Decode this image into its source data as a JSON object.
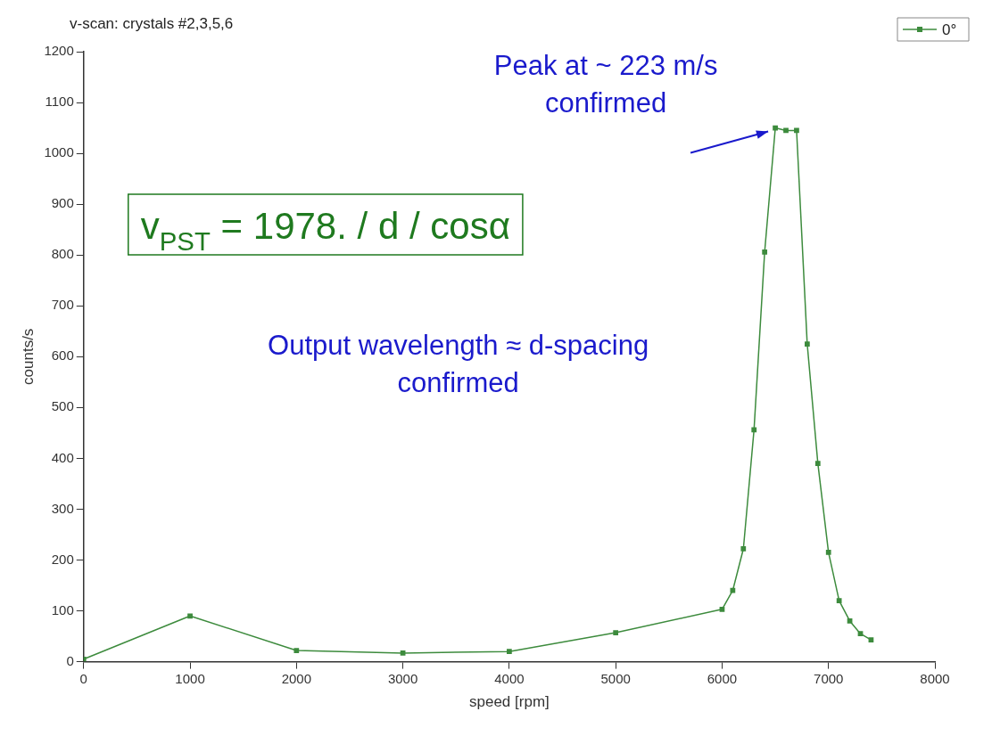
{
  "chart_data": {
    "type": "line",
    "title": "v-scan: crystals #2,3,5,6",
    "xlabel": "speed [rpm]",
    "ylabel": "counts/s",
    "x": [
      0,
      1000,
      2000,
      3000,
      4000,
      5000,
      6000,
      6100,
      6200,
      6300,
      6400,
      6500,
      6600,
      6700,
      6800,
      6900,
      7000,
      7100,
      7200,
      7300,
      7400
    ],
    "series": [
      {
        "name": "0°",
        "color": "#3d8b3d",
        "values": [
          5,
          90,
          22,
          17,
          20,
          57,
          103,
          140,
          222,
          456,
          806,
          1050,
          1045,
          1045,
          625,
          390,
          215,
          120,
          80,
          55,
          43
        ]
      }
    ],
    "xlim": [
      0,
      8000
    ],
    "xticks": [
      0,
      1000,
      2000,
      3000,
      4000,
      5000,
      6000,
      7000,
      8000
    ],
    "ylim": [
      0,
      1200
    ],
    "yticks": [
      0,
      100,
      200,
      300,
      400,
      500,
      600,
      700,
      800,
      900,
      1000,
      1100,
      1200
    ],
    "grid": false,
    "legend": "top right",
    "marker": "square",
    "line_style": "solid",
    "annotations": [
      {
        "text": "Peak at ~ 223 m/s\nconfirmed",
        "x": 6500,
        "y": 1050
      },
      "v$_{PST}$ = 1978. / d / cosα",
      "Output wavelength ≈ d-spacing\nconfirmed"
    ]
  }
}
